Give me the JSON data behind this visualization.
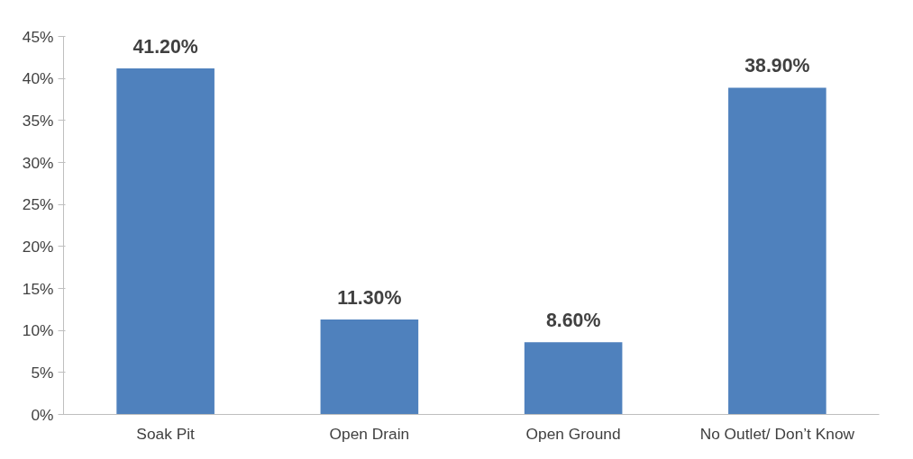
{
  "chart_data": {
    "type": "bar",
    "categories": [
      "Soak Pit",
      "Open Drain",
      "Open Ground",
      "No Outlet/ Don’t Know"
    ],
    "values": [
      41.2,
      11.3,
      8.6,
      38.9
    ],
    "color": "#4f81bd",
    "value_labels": [
      "41.20%",
      "11.30%",
      "8.60%",
      "38.90%"
    ],
    "ylim": [
      0,
      45
    ],
    "yticks": [
      {
        "value": 0,
        "label": "0%"
      },
      {
        "value": 5,
        "label": "5%"
      },
      {
        "value": 10,
        "label": "10%"
      },
      {
        "value": 15,
        "label": "15%"
      },
      {
        "value": 20,
        "label": "20%"
      },
      {
        "value": 25,
        "label": "25%"
      },
      {
        "value": 30,
        "label": "30%"
      },
      {
        "value": 35,
        "label": "35%"
      },
      {
        "value": 40,
        "label": "40%"
      },
      {
        "value": 45,
        "label": "45%"
      }
    ],
    "grid": false
  }
}
